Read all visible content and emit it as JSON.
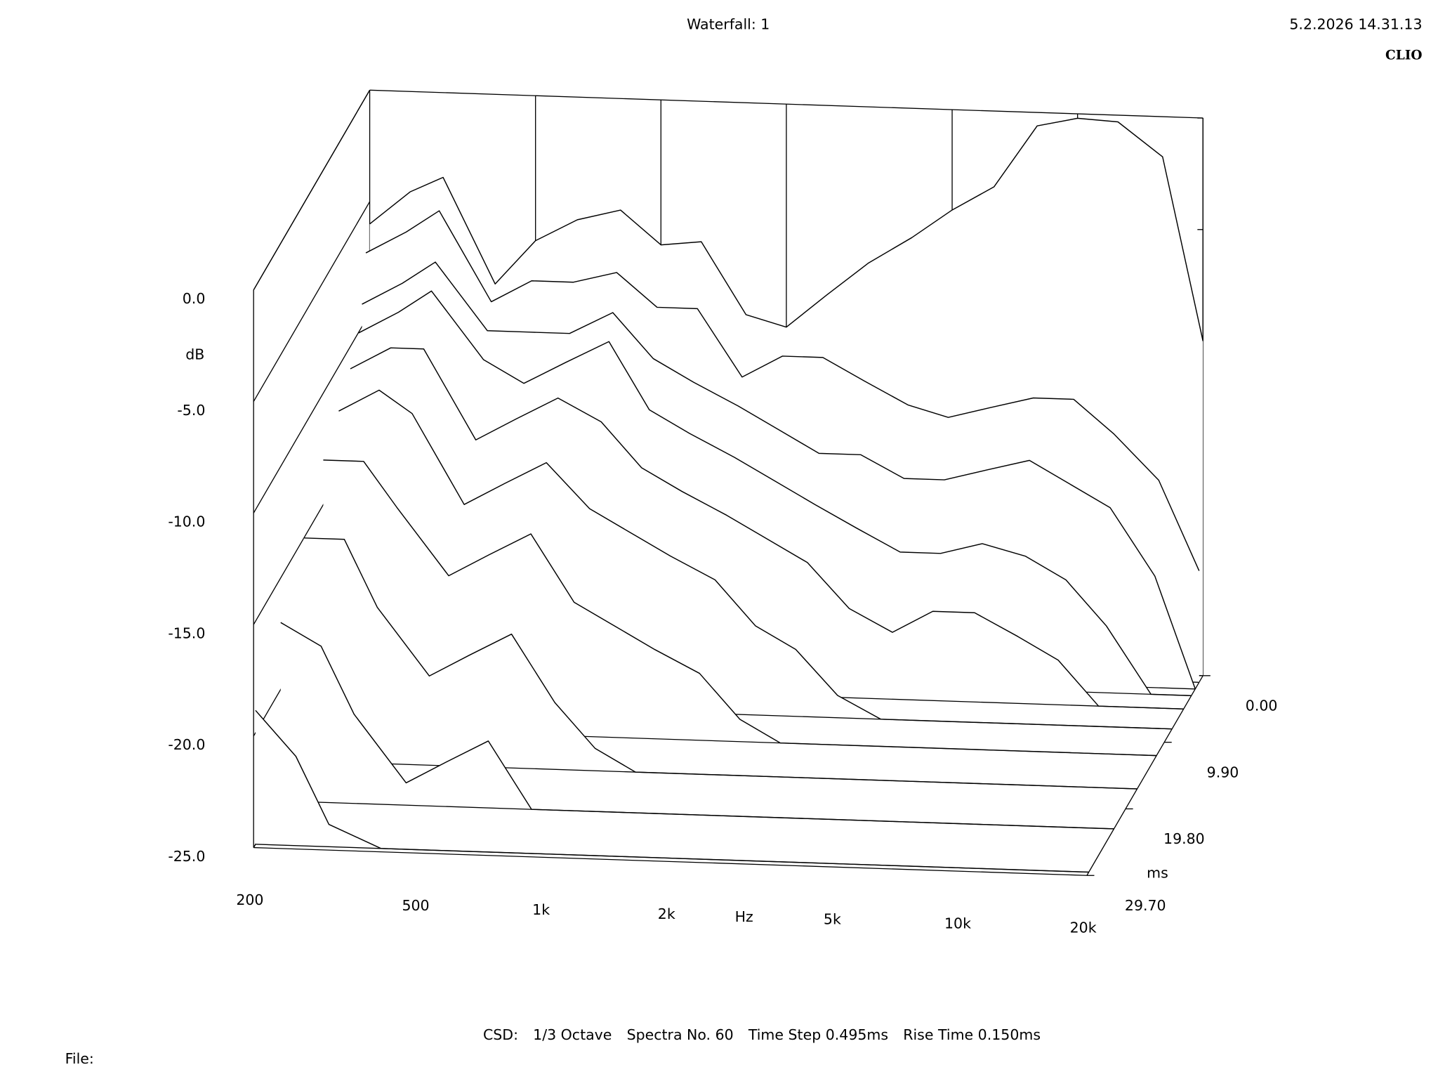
{
  "chart_data": {
    "type": "waterfall",
    "title": "Waterfall: 1",
    "timestamp": "5.2.2026 14.31.13",
    "brand": "CLIO",
    "footer": [
      "CSD:",
      "1/3 Octave",
      "Spectra No. 60",
      "Time Step 0.495ms",
      "Rise Time 0.150ms"
    ],
    "file_label": "File:",
    "x_label": "Hz",
    "y_label": "dB",
    "z_label": "ms",
    "log_x": true,
    "xlim": [
      200,
      20000
    ],
    "ylim": [
      -25,
      0
    ],
    "zlim": [
      0,
      29.7
    ],
    "xticks": [
      200,
      500,
      {
        "value": 1000,
        "label": "1k"
      },
      {
        "value": 2000,
        "label": "2k"
      },
      {
        "value": 5000,
        "label": "5k"
      },
      {
        "value": 10000,
        "label": "10k"
      },
      {
        "value": 20000,
        "label": "20k"
      }
    ],
    "yticks": [
      {
        "value": 0,
        "label": "0.0"
      },
      {
        "value": -5,
        "label": "-5.0"
      },
      {
        "value": -10,
        "label": "-10.0"
      },
      {
        "value": -15,
        "label": "-15.0"
      },
      {
        "value": -20,
        "label": "-20.0"
      },
      {
        "value": -25,
        "label": "-25.0"
      }
    ],
    "zticks": [
      {
        "value": 0,
        "label": "0.00"
      },
      {
        "value": 9.9,
        "label": "9.90"
      },
      {
        "value": 19.8,
        "label": "19.80"
      },
      {
        "value": 29.7,
        "label": "29.70"
      }
    ],
    "color": "#000000",
    "frequencies": [
      200,
      250,
      300,
      400,
      500,
      630,
      800,
      1000,
      1250,
      1600,
      2000,
      2500,
      3150,
      4000,
      5000,
      6300,
      8000,
      10000,
      12500,
      16000,
      20000
    ],
    "spectra": [
      {
        "time": 0,
        "values": [
          -6,
          -4.5,
          -3.8,
          -8.5,
          -6.5,
          -5.5,
          -5,
          -6.5,
          -6.3,
          -9.5,
          -10,
          -8.5,
          -7,
          -5.8,
          -4.5,
          -3.4,
          -0.6,
          -0.2,
          -0.3,
          -1.8,
          -10
        ]
      },
      {
        "time": 0.99,
        "values": [
          -7,
          -6,
          -5,
          -9,
          -8,
          -8,
          -7.5,
          -9,
          -9,
          -12,
          -11,
          -11,
          -12,
          -13,
          -13.5,
          -13,
          -12.5,
          -12.5,
          -14,
          -16,
          -20
        ]
      },
      {
        "time": 1.98,
        "values": [
          -9,
          -8,
          -7,
          -10,
          -10,
          -10,
          -9,
          -11,
          -12,
          -13,
          -14,
          -15,
          -15,
          -16,
          -16,
          -15.5,
          -15,
          -16,
          -17,
          -20,
          -25
        ]
      },
      {
        "time": 2.97,
        "values": [
          -10,
          -9,
          -8,
          -11,
          -12,
          -11,
          -10,
          -13,
          -14,
          -15,
          -16,
          -17,
          -18,
          -19,
          -19,
          -18.5,
          -19,
          -20,
          -22,
          -25,
          -25
        ]
      },
      {
        "time": 4.95,
        "values": [
          -11,
          -10,
          -10,
          -14,
          -13,
          -12,
          -13,
          -15,
          -16,
          -17,
          -18,
          -19,
          -21,
          -22,
          -21,
          -21,
          -22,
          -23,
          -25,
          -25,
          -25
        ]
      },
      {
        "time": 7.92,
        "values": [
          -12,
          -11,
          -12,
          -16,
          -15,
          -14,
          -16,
          -17,
          -18,
          -19,
          -21,
          -22,
          -24,
          -25,
          -25,
          -25,
          -25,
          -25,
          -25,
          -25,
          -25
        ]
      },
      {
        "time": 11.88,
        "values": [
          -13,
          -13,
          -15,
          -18,
          -17,
          -16,
          -19,
          -20,
          -21,
          -22,
          -24,
          -25,
          -25,
          -25,
          -25,
          -25,
          -25,
          -25,
          -25,
          -25,
          -25
        ]
      },
      {
        "time": 16.83,
        "values": [
          -15,
          -15,
          -18,
          -21,
          -20,
          -19,
          -22,
          -24,
          -25,
          -25,
          -25,
          -25,
          -25,
          -25,
          -25,
          -25,
          -25,
          -25,
          -25,
          -25,
          -25
        ]
      },
      {
        "time": 22.77,
        "values": [
          -17,
          -18,
          -21,
          -24,
          -23,
          -22,
          -25,
          -25,
          -25,
          -25,
          -25,
          -25,
          -25,
          -25,
          -25,
          -25,
          -25,
          -25,
          -25,
          -25,
          -25
        ]
      },
      {
        "time": 29.205,
        "values": [
          -19,
          -21,
          -24,
          -25,
          -25,
          -25,
          -25,
          -25,
          -25,
          -25,
          -25,
          -25,
          -25,
          -25,
          -25,
          -25,
          -25,
          -25,
          -25,
          -25,
          -25
        ]
      }
    ]
  }
}
